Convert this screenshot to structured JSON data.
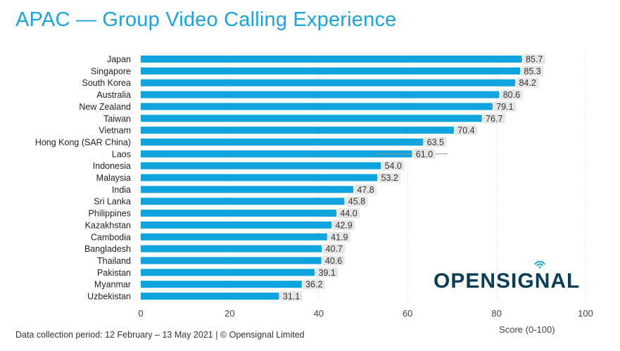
{
  "title": "APAC — Group Video Calling Experience",
  "footer": "Data collection period: 12 February – 13 May 2021  |  © Opensignal Limited",
  "logo": "OPENSIGNAL",
  "colors": {
    "bar": "#0fa4de",
    "label_bg": "#e6e6e6",
    "title": "#1aa3dc",
    "logo": "#0b3d56"
  },
  "chart_data": {
    "type": "bar",
    "orientation": "horizontal",
    "title": "APAC — Group Video Calling Experience",
    "xlabel": "Score (0-100)",
    "ylabel": "",
    "xlim": [
      0,
      100
    ],
    "xticks": [
      0,
      20,
      40,
      60,
      80,
      100
    ],
    "grid": true,
    "categories": [
      "Japan",
      "Singapore",
      "South Korea",
      "Australia",
      "New Zealand",
      "Taiwan",
      "Vietnam",
      "Hong Kong (SAR China)",
      "Laos",
      "Indonesia",
      "Malaysia",
      "India",
      "Sri Lanka",
      "Philippines",
      "Kazakhstan",
      "Cambodia",
      "Bangladesh",
      "Thailand",
      "Pakistan",
      "Myanmar",
      "Uzbekistan"
    ],
    "values": [
      85.7,
      85.3,
      84.2,
      80.6,
      79.1,
      76.7,
      70.4,
      63.5,
      61.0,
      54.0,
      53.2,
      47.8,
      45.8,
      44.0,
      42.9,
      41.9,
      40.7,
      40.6,
      39.1,
      36.2,
      31.1
    ],
    "labels": [
      "85.7",
      "85.3",
      "84.2",
      "80.6",
      "79.1",
      "76.7",
      "70.4",
      "63.5",
      "61.0",
      "54.0",
      "53.2",
      "47.8",
      "45.8",
      "44.0",
      "42.9",
      "41.9",
      "40.7",
      "40.6",
      "39.1",
      "36.2",
      "31.1"
    ],
    "ci": [
      [
        85.4,
        86.0
      ],
      [
        85.0,
        85.6
      ],
      [
        83.9,
        84.5
      ],
      [
        80.3,
        80.9
      ],
      [
        78.5,
        79.7
      ],
      [
        76.3,
        77.1
      ],
      [
        70.1,
        70.7
      ],
      [
        63.0,
        64.0
      ],
      [
        53.0,
        69.0
      ],
      [
        53.8,
        54.2
      ],
      [
        53.0,
        53.4
      ],
      [
        47.6,
        48.0
      ],
      [
        45.5,
        46.1
      ],
      [
        43.8,
        44.2
      ],
      [
        42.6,
        43.2
      ],
      [
        41.5,
        42.3
      ],
      [
        40.5,
        40.9
      ],
      [
        40.3,
        40.9
      ],
      [
        38.8,
        39.4
      ],
      [
        35.8,
        36.6
      ],
      [
        30.6,
        31.6
      ]
    ]
  }
}
